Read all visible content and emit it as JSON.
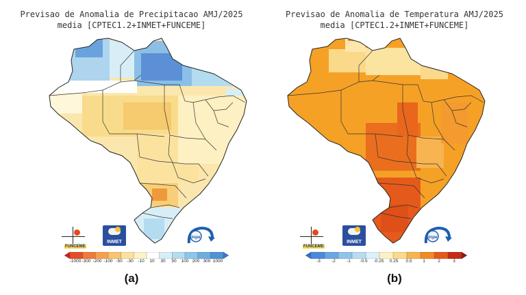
{
  "panel_a": {
    "title_line1": "Previsao de Anomalia de Precipitacao AMJ/2025",
    "title_line2": "media [CPTEC1.2+INMET+FUNCEME]",
    "caption": "(a)",
    "colorbar": {
      "colors": [
        "#d7191c",
        "#e44d26",
        "#ee7b36",
        "#f4a14e",
        "#f8c46e",
        "#fbe09a",
        "#fdf3c8",
        "#ffffff",
        "#d8eef7",
        "#b4dcf0",
        "#8cc6ea",
        "#6aaee0",
        "#4f92d6",
        "#3d75c8"
      ],
      "ticks": [
        "-1000",
        "-300",
        "-200",
        "-100",
        "-50",
        "-30",
        "-10",
        "10",
        "30",
        "50",
        "100",
        "200",
        "300",
        "1000"
      ]
    },
    "logos": {
      "funceme": "FUNCEME",
      "inmet": "INMET",
      "inpe": "inpe"
    }
  },
  "panel_b": {
    "title_line1": "Previsao de Anomalia de Temperatura AMJ/2025",
    "title_line2": "media [CPTEC1.2+INMET+FUNCEME]",
    "caption": "(b)",
    "colorbar": {
      "colors": [
        "#2f6fce",
        "#4a8ad9",
        "#6aa6e2",
        "#8fc3ea",
        "#b6dcf1",
        "#dcf0f8",
        "#fdf1c4",
        "#fbd98a",
        "#f7b450",
        "#f08a25",
        "#e35a1a",
        "#c62a15",
        "#8e1a10"
      ],
      "ticks": [
        "-3",
        "-2",
        "-1",
        "-0.5",
        "-0.25",
        "0.25",
        "0.5",
        "1",
        "2",
        "3"
      ]
    },
    "logos": {
      "funceme": "FUNCEME",
      "inmet": "INMET",
      "inpe": "inpe"
    }
  }
}
